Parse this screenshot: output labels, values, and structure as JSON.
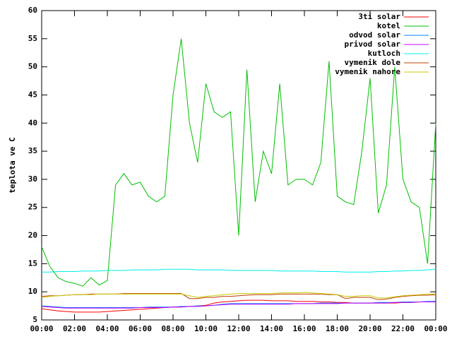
{
  "chart_data": {
    "type": "line",
    "ylabel": "teplota ve C",
    "x": [
      0,
      0.5,
      1,
      1.5,
      2,
      2.5,
      3,
      3.5,
      4,
      4.5,
      5,
      5.5,
      6,
      6.5,
      7,
      7.5,
      8,
      8.5,
      9,
      9.5,
      10,
      10.5,
      11,
      11.5,
      12,
      12.5,
      13,
      13.5,
      14,
      14.5,
      15,
      15.5,
      16,
      16.5,
      17,
      17.5,
      18,
      18.5,
      19,
      19.5,
      20,
      20.5,
      21,
      21.5,
      22,
      22.5,
      23,
      23.5,
      24
    ],
    "xlim": [
      0,
      24
    ],
    "xticks": [
      {
        "value": 0,
        "label": "00:00"
      },
      {
        "value": 2,
        "label": "02:00"
      },
      {
        "value": 4,
        "label": "04:00"
      },
      {
        "value": 6,
        "label": "06:00"
      },
      {
        "value": 8,
        "label": "08:00"
      },
      {
        "value": 10,
        "label": "10:00"
      },
      {
        "value": 12,
        "label": "12:00"
      },
      {
        "value": 14,
        "label": "14:00"
      },
      {
        "value": 16,
        "label": "16:00"
      },
      {
        "value": 18,
        "label": "18:00"
      },
      {
        "value": 20,
        "label": "20:00"
      },
      {
        "value": 22,
        "label": "22:00"
      },
      {
        "value": 24,
        "label": "00:00"
      }
    ],
    "ylim": [
      5,
      60
    ],
    "yticks": [
      5,
      10,
      15,
      20,
      25,
      30,
      35,
      40,
      45,
      50,
      55,
      60
    ],
    "legend": "upper right",
    "series": [
      {
        "name": "3ti solar",
        "color": "#ff0000",
        "values": [
          7,
          6.8,
          6.6,
          6.5,
          6.4,
          6.4,
          6.4,
          6.4,
          6.5,
          6.6,
          6.7,
          6.8,
          6.9,
          7,
          7.1,
          7.2,
          7.3,
          7.3,
          7.4,
          7.5,
          7.6,
          8,
          8.2,
          8.3,
          8.4,
          8.5,
          8.5,
          8.5,
          8.4,
          8.4,
          8.4,
          8.3,
          8.3,
          8.3,
          8.2,
          8.2,
          8.1,
          8.1,
          8,
          8,
          8,
          8,
          8,
          8,
          8.1,
          8.1,
          8.2,
          8.2,
          8.3
        ]
      },
      {
        "name": "kotel",
        "color": "#00c000",
        "values": [
          18,
          14.5,
          12.5,
          11.8,
          11.5,
          11,
          12.5,
          11.2,
          12,
          29,
          31,
          29,
          29.5,
          27,
          26,
          27,
          45,
          55,
          40,
          33,
          47,
          42,
          41,
          42,
          20,
          49.5,
          26,
          35,
          31,
          47,
          29,
          30,
          30,
          29,
          33,
          51,
          27,
          26,
          25.5,
          35,
          48,
          24,
          29,
          50,
          30,
          26,
          25,
          15,
          40
        ]
      },
      {
        "name": "odvod solar",
        "color": "#0080ff",
        "values": [
          7.5,
          7.4,
          7.3,
          7.2,
          7.2,
          7.2,
          7.2,
          7.2,
          7.2,
          7.2,
          7.2,
          7.2,
          7.2,
          7.3,
          7.3,
          7.3,
          7.3,
          7.4,
          7.4,
          7.5,
          7.5,
          7.6,
          7.8,
          7.9,
          7.9,
          7.9,
          7.9,
          7.9,
          7.9,
          7.9,
          7.9,
          7.9,
          7.9,
          7.9,
          8,
          8,
          8,
          8,
          8,
          8,
          8,
          8.1,
          8.1,
          8.1,
          8.2,
          8.2,
          8.2,
          8.3,
          8.3
        ]
      },
      {
        "name": "privod solar",
        "color": "#c000ff",
        "values": [
          7.4,
          7.3,
          7.2,
          7.1,
          7.1,
          7.1,
          7.1,
          7.1,
          7.1,
          7.1,
          7.1,
          7.1,
          7.2,
          7.2,
          7.2,
          7.2,
          7.3,
          7.3,
          7.4,
          7.4,
          7.5,
          7.6,
          7.7,
          7.8,
          7.8,
          7.8,
          7.8,
          7.8,
          7.8,
          7.8,
          7.8,
          7.9,
          7.9,
          7.9,
          7.9,
          7.9,
          7.9,
          8,
          8,
          8,
          8,
          8,
          8,
          8.1,
          8.1,
          8.1,
          8.2,
          8.2,
          8.2
        ]
      },
      {
        "name": "kutloch",
        "color": "#00eeee",
        "values": [
          13.5,
          13.5,
          13.6,
          13.6,
          13.6,
          13.7,
          13.7,
          13.7,
          13.8,
          13.8,
          13.8,
          13.9,
          13.9,
          13.9,
          13.9,
          14,
          14,
          14,
          14,
          13.9,
          13.9,
          13.9,
          13.9,
          13.8,
          13.8,
          13.8,
          13.8,
          13.8,
          13.8,
          13.7,
          13.7,
          13.7,
          13.7,
          13.7,
          13.6,
          13.6,
          13.6,
          13.5,
          13.5,
          13.5,
          13.5,
          13.6,
          13.6,
          13.7,
          13.7,
          13.8,
          13.8,
          13.9,
          14
        ]
      },
      {
        "name": "vymenik dole",
        "color": "#c04000",
        "values": [
          9.2,
          9.3,
          9.3,
          9.4,
          9.5,
          9.5,
          9.6,
          9.6,
          9.6,
          9.6,
          9.7,
          9.7,
          9.7,
          9.7,
          9.7,
          9.7,
          9.7,
          9.7,
          8.8,
          8.8,
          9,
          9,
          9.2,
          9.2,
          9.3,
          9.4,
          9.5,
          9.5,
          9.5,
          9.6,
          9.6,
          9.6,
          9.6,
          9.6,
          9.6,
          9.5,
          9.5,
          8.8,
          9,
          9,
          9,
          8.6,
          8.7,
          9,
          9.2,
          9.3,
          9.4,
          9.4,
          9.5
        ]
      },
      {
        "name": "vymenik nahore",
        "color": "#c8c800",
        "values": [
          9,
          9.2,
          9.3,
          9.4,
          9.5,
          9.5,
          9.5,
          9.6,
          9.6,
          9.6,
          9.6,
          9.6,
          9.6,
          9.6,
          9.6,
          9.6,
          9.6,
          9.6,
          9.3,
          9,
          9.2,
          9.3,
          9.5,
          9.6,
          9.7,
          9.7,
          9.7,
          9.7,
          9.7,
          9.8,
          9.8,
          9.8,
          9.9,
          9.8,
          9.7,
          9.6,
          9.5,
          9.2,
          9.2,
          9.3,
          9.3,
          8.9,
          8.9,
          9.1,
          9.3,
          9.4,
          9.5,
          9.6,
          9.6
        ]
      }
    ]
  }
}
